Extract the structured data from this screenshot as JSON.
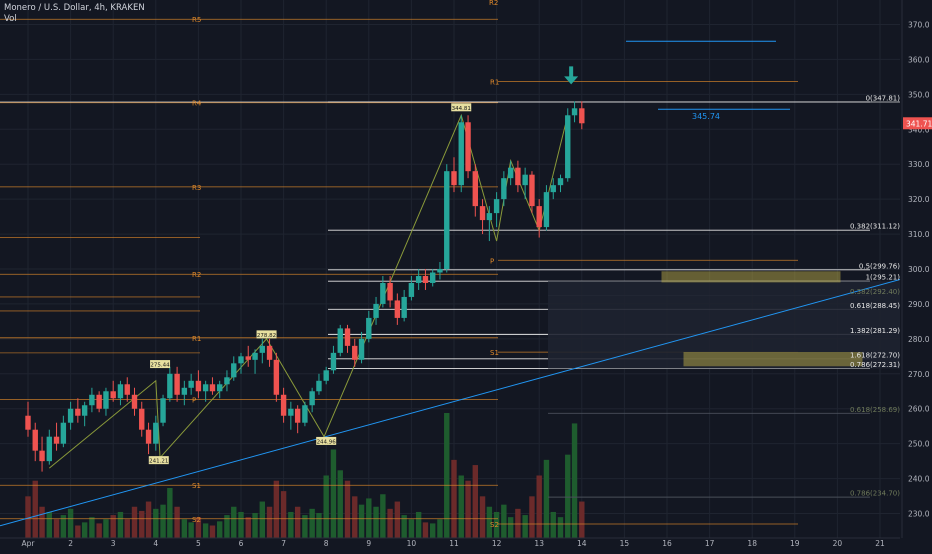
{
  "header": {
    "symbol_line": "Monero / U.S. Dollar, 4h, KRAKEN",
    "volume_label": "Vol"
  },
  "colors": {
    "background": "#131722",
    "up": "#26a69a",
    "down": "#ef5350",
    "vol_up": "#1e5c2e",
    "vol_down": "#6b2a2a",
    "pivot": "#e0892a",
    "fib": "#e6e6e6",
    "trend": "#2196f3",
    "zigzag": "#8a9a3a",
    "zone": "#c9b84a",
    "arrow": "#26a69a",
    "axis_text": "#b2b5be"
  },
  "chart_data": {
    "type": "candlestick",
    "y_axis": {
      "min": 223,
      "max": 377,
      "ticks": [
        230,
        240,
        250,
        260,
        270,
        280,
        290,
        300,
        310,
        320,
        330,
        340,
        350,
        360,
        370
      ]
    },
    "x_axis": {
      "labels": [
        "Apr",
        "2",
        "3",
        "4",
        "5",
        "6",
        "7",
        "8",
        "9",
        "10",
        "11",
        "12",
        "13",
        "14",
        "15",
        "16",
        "17",
        "18",
        "19",
        "20",
        "21"
      ],
      "label_positions": [
        0,
        1,
        2,
        3,
        4,
        5,
        6,
        7,
        8,
        9,
        10,
        11,
        12,
        13,
        14,
        15,
        16,
        17,
        18,
        19,
        20
      ]
    },
    "last_price": {
      "value": 341.71,
      "label": "341.71"
    },
    "level_label": {
      "value": 345.74,
      "label": "345.74"
    },
    "candles": [
      {
        "t": 0.0,
        "o": 258,
        "h": 262,
        "l": 252,
        "c": 254
      },
      {
        "t": 0.17,
        "o": 254,
        "h": 256,
        "l": 245,
        "c": 248
      },
      {
        "t": 0.33,
        "o": 248,
        "h": 252,
        "l": 242,
        "c": 245
      },
      {
        "t": 0.5,
        "o": 245,
        "h": 254,
        "l": 244,
        "c": 252
      },
      {
        "t": 0.67,
        "o": 252,
        "h": 256,
        "l": 248,
        "c": 250
      },
      {
        "t": 0.83,
        "o": 250,
        "h": 258,
        "l": 249,
        "c": 256
      },
      {
        "t": 1.0,
        "o": 256,
        "h": 262,
        "l": 254,
        "c": 260
      },
      {
        "t": 1.17,
        "o": 260,
        "h": 263,
        "l": 256,
        "c": 258
      },
      {
        "t": 1.33,
        "o": 258,
        "h": 262,
        "l": 255,
        "c": 261
      },
      {
        "t": 1.5,
        "o": 261,
        "h": 266,
        "l": 259,
        "c": 264
      },
      {
        "t": 1.67,
        "o": 264,
        "h": 265,
        "l": 259,
        "c": 260
      },
      {
        "t": 1.83,
        "o": 260,
        "h": 266,
        "l": 258,
        "c": 265
      },
      {
        "t": 2.0,
        "o": 265,
        "h": 268,
        "l": 262,
        "c": 263
      },
      {
        "t": 2.17,
        "o": 263,
        "h": 268,
        "l": 261,
        "c": 267
      },
      {
        "t": 2.33,
        "o": 267,
        "h": 269,
        "l": 262,
        "c": 264
      },
      {
        "t": 2.5,
        "o": 264,
        "h": 266,
        "l": 258,
        "c": 260
      },
      {
        "t": 2.67,
        "o": 260,
        "h": 262,
        "l": 252,
        "c": 254
      },
      {
        "t": 2.83,
        "o": 254,
        "h": 256,
        "l": 247,
        "c": 250
      },
      {
        "t": 3.0,
        "o": 250,
        "h": 258,
        "l": 248,
        "c": 256
      },
      {
        "t": 3.17,
        "o": 256,
        "h": 264,
        "l": 255,
        "c": 263
      },
      {
        "t": 3.33,
        "o": 263,
        "h": 272,
        "l": 262,
        "c": 270
      },
      {
        "t": 3.5,
        "o": 270,
        "h": 272,
        "l": 262,
        "c": 264
      },
      {
        "t": 3.67,
        "o": 264,
        "h": 268,
        "l": 261,
        "c": 266
      },
      {
        "t": 3.83,
        "o": 266,
        "h": 270,
        "l": 264,
        "c": 268
      },
      {
        "t": 4.0,
        "o": 268,
        "h": 271,
        "l": 263,
        "c": 265
      },
      {
        "t": 4.17,
        "o": 265,
        "h": 268,
        "l": 262,
        "c": 267
      },
      {
        "t": 4.33,
        "o": 267,
        "h": 269,
        "l": 264,
        "c": 265
      },
      {
        "t": 4.5,
        "o": 265,
        "h": 268,
        "l": 263,
        "c": 267
      },
      {
        "t": 4.67,
        "o": 267,
        "h": 271,
        "l": 265,
        "c": 269
      },
      {
        "t": 4.83,
        "o": 269,
        "h": 275,
        "l": 268,
        "c": 273
      },
      {
        "t": 5.0,
        "o": 273,
        "h": 276,
        "l": 270,
        "c": 275
      },
      {
        "t": 5.17,
        "o": 275,
        "h": 278,
        "l": 272,
        "c": 274
      },
      {
        "t": 5.33,
        "o": 274,
        "h": 277,
        "l": 270,
        "c": 276
      },
      {
        "t": 5.5,
        "o": 276,
        "h": 280,
        "l": 273,
        "c": 278
      },
      {
        "t": 5.67,
        "o": 278,
        "h": 280,
        "l": 272,
        "c": 274
      },
      {
        "t": 5.83,
        "o": 274,
        "h": 276,
        "l": 262,
        "c": 264
      },
      {
        "t": 6.0,
        "o": 264,
        "h": 266,
        "l": 256,
        "c": 258
      },
      {
        "t": 6.17,
        "o": 258,
        "h": 262,
        "l": 254,
        "c": 260
      },
      {
        "t": 6.33,
        "o": 260,
        "h": 261,
        "l": 253,
        "c": 256
      },
      {
        "t": 6.5,
        "o": 256,
        "h": 262,
        "l": 255,
        "c": 261
      },
      {
        "t": 6.67,
        "o": 261,
        "h": 266,
        "l": 259,
        "c": 265
      },
      {
        "t": 6.83,
        "o": 265,
        "h": 270,
        "l": 264,
        "c": 268
      },
      {
        "t": 7.0,
        "o": 268,
        "h": 272,
        "l": 267,
        "c": 271
      },
      {
        "t": 7.17,
        "o": 271,
        "h": 278,
        "l": 270,
        "c": 276
      },
      {
        "t": 7.33,
        "o": 276,
        "h": 284,
        "l": 275,
        "c": 283
      },
      {
        "t": 7.5,
        "o": 283,
        "h": 284,
        "l": 276,
        "c": 278
      },
      {
        "t": 7.67,
        "o": 278,
        "h": 280,
        "l": 272,
        "c": 274
      },
      {
        "t": 7.83,
        "o": 274,
        "h": 282,
        "l": 273,
        "c": 280
      },
      {
        "t": 8.0,
        "o": 280,
        "h": 288,
        "l": 279,
        "c": 286
      },
      {
        "t": 8.17,
        "o": 286,
        "h": 292,
        "l": 284,
        "c": 290
      },
      {
        "t": 8.33,
        "o": 290,
        "h": 298,
        "l": 289,
        "c": 296
      },
      {
        "t": 8.5,
        "o": 296,
        "h": 298,
        "l": 289,
        "c": 291
      },
      {
        "t": 8.67,
        "o": 291,
        "h": 293,
        "l": 284,
        "c": 286
      },
      {
        "t": 8.83,
        "o": 286,
        "h": 294,
        "l": 285,
        "c": 292
      },
      {
        "t": 9.0,
        "o": 292,
        "h": 298,
        "l": 291,
        "c": 296
      },
      {
        "t": 9.17,
        "o": 296,
        "h": 300,
        "l": 294,
        "c": 298
      },
      {
        "t": 9.33,
        "o": 298,
        "h": 300,
        "l": 294,
        "c": 296
      },
      {
        "t": 9.5,
        "o": 296,
        "h": 300,
        "l": 295,
        "c": 299
      },
      {
        "t": 9.67,
        "o": 299,
        "h": 302,
        "l": 297,
        "c": 300
      },
      {
        "t": 9.83,
        "o": 300,
        "h": 330,
        "l": 299,
        "c": 328
      },
      {
        "t": 10.0,
        "o": 328,
        "h": 332,
        "l": 322,
        "c": 324
      },
      {
        "t": 10.17,
        "o": 324,
        "h": 344,
        "l": 322,
        "c": 342
      },
      {
        "t": 10.33,
        "o": 342,
        "h": 344,
        "l": 326,
        "c": 328
      },
      {
        "t": 10.5,
        "o": 328,
        "h": 330,
        "l": 315,
        "c": 318
      },
      {
        "t": 10.67,
        "o": 318,
        "h": 320,
        "l": 310,
        "c": 314
      },
      {
        "t": 10.83,
        "o": 314,
        "h": 318,
        "l": 308,
        "c": 316
      },
      {
        "t": 11.0,
        "o": 316,
        "h": 322,
        "l": 312,
        "c": 320
      },
      {
        "t": 11.17,
        "o": 320,
        "h": 328,
        "l": 318,
        "c": 326
      },
      {
        "t": 11.33,
        "o": 326,
        "h": 331,
        "l": 324,
        "c": 329
      },
      {
        "t": 11.5,
        "o": 329,
        "h": 331,
        "l": 322,
        "c": 324
      },
      {
        "t": 11.67,
        "o": 324,
        "h": 329,
        "l": 320,
        "c": 327
      },
      {
        "t": 11.83,
        "o": 327,
        "h": 328,
        "l": 316,
        "c": 318
      },
      {
        "t": 12.0,
        "o": 318,
        "h": 320,
        "l": 309,
        "c": 312
      },
      {
        "t": 12.17,
        "o": 312,
        "h": 324,
        "l": 311,
        "c": 322
      },
      {
        "t": 12.33,
        "o": 322,
        "h": 326,
        "l": 320,
        "c": 324
      },
      {
        "t": 12.5,
        "o": 324,
        "h": 327,
        "l": 322,
        "c": 326
      },
      {
        "t": 12.67,
        "o": 326,
        "h": 346,
        "l": 325,
        "c": 344
      },
      {
        "t": 12.83,
        "o": 344,
        "h": 348,
        "l": 342,
        "c": 346
      },
      {
        "t": 13.0,
        "o": 346,
        "h": 348,
        "l": 340,
        "c": 341.71
      }
    ],
    "volumes": [
      {
        "t": 0.0,
        "v": 40,
        "up": false
      },
      {
        "t": 0.17,
        "v": 55,
        "up": false
      },
      {
        "t": 0.33,
        "v": 30,
        "up": false
      },
      {
        "t": 0.5,
        "v": 25,
        "up": true
      },
      {
        "t": 0.67,
        "v": 18,
        "up": false
      },
      {
        "t": 0.83,
        "v": 22,
        "up": true
      },
      {
        "t": 1.0,
        "v": 28,
        "up": true
      },
      {
        "t": 1.17,
        "v": 12,
        "up": false
      },
      {
        "t": 1.33,
        "v": 15,
        "up": true
      },
      {
        "t": 1.5,
        "v": 20,
        "up": true
      },
      {
        "t": 1.67,
        "v": 14,
        "up": false
      },
      {
        "t": 1.83,
        "v": 18,
        "up": true
      },
      {
        "t": 2.0,
        "v": 22,
        "up": false
      },
      {
        "t": 2.17,
        "v": 25,
        "up": true
      },
      {
        "t": 2.33,
        "v": 18,
        "up": false
      },
      {
        "t": 2.5,
        "v": 30,
        "up": false
      },
      {
        "t": 2.67,
        "v": 26,
        "up": false
      },
      {
        "t": 2.83,
        "v": 35,
        "up": false
      },
      {
        "t": 3.0,
        "v": 28,
        "up": true
      },
      {
        "t": 3.17,
        "v": 32,
        "up": true
      },
      {
        "t": 3.33,
        "v": 48,
        "up": true
      },
      {
        "t": 3.5,
        "v": 30,
        "up": false
      },
      {
        "t": 3.67,
        "v": 18,
        "up": true
      },
      {
        "t": 3.83,
        "v": 15,
        "up": true
      },
      {
        "t": 4.0,
        "v": 20,
        "up": false
      },
      {
        "t": 4.17,
        "v": 14,
        "up": true
      },
      {
        "t": 4.33,
        "v": 12,
        "up": false
      },
      {
        "t": 4.5,
        "v": 16,
        "up": true
      },
      {
        "t": 4.67,
        "v": 22,
        "up": true
      },
      {
        "t": 4.83,
        "v": 30,
        "up": true
      },
      {
        "t": 5.0,
        "v": 25,
        "up": true
      },
      {
        "t": 5.17,
        "v": 20,
        "up": false
      },
      {
        "t": 5.33,
        "v": 24,
        "up": true
      },
      {
        "t": 5.5,
        "v": 35,
        "up": true
      },
      {
        "t": 5.67,
        "v": 30,
        "up": false
      },
      {
        "t": 5.83,
        "v": 55,
        "up": false
      },
      {
        "t": 6.0,
        "v": 45,
        "up": false
      },
      {
        "t": 6.17,
        "v": 25,
        "up": true
      },
      {
        "t": 6.33,
        "v": 30,
        "up": false
      },
      {
        "t": 6.5,
        "v": 22,
        "up": true
      },
      {
        "t": 6.67,
        "v": 28,
        "up": true
      },
      {
        "t": 6.83,
        "v": 24,
        "up": true
      },
      {
        "t": 7.0,
        "v": 60,
        "up": true
      },
      {
        "t": 7.17,
        "v": 85,
        "up": true
      },
      {
        "t": 7.33,
        "v": 65,
        "up": true
      },
      {
        "t": 7.5,
        "v": 55,
        "up": false
      },
      {
        "t": 7.67,
        "v": 40,
        "up": false
      },
      {
        "t": 7.83,
        "v": 32,
        "up": true
      },
      {
        "t": 8.0,
        "v": 38,
        "up": true
      },
      {
        "t": 8.17,
        "v": 30,
        "up": true
      },
      {
        "t": 8.33,
        "v": 42,
        "up": true
      },
      {
        "t": 8.5,
        "v": 28,
        "up": false
      },
      {
        "t": 8.67,
        "v": 35,
        "up": false
      },
      {
        "t": 8.83,
        "v": 22,
        "up": true
      },
      {
        "t": 9.0,
        "v": 18,
        "up": true
      },
      {
        "t": 9.17,
        "v": 25,
        "up": true
      },
      {
        "t": 9.33,
        "v": 15,
        "up": false
      },
      {
        "t": 9.5,
        "v": 14,
        "up": true
      },
      {
        "t": 9.67,
        "v": 18,
        "up": true
      },
      {
        "t": 9.83,
        "v": 120,
        "up": true
      },
      {
        "t": 10.0,
        "v": 75,
        "up": false
      },
      {
        "t": 10.17,
        "v": 60,
        "up": true
      },
      {
        "t": 10.33,
        "v": 55,
        "up": false
      },
      {
        "t": 10.5,
        "v": 70,
        "up": false
      },
      {
        "t": 10.67,
        "v": 40,
        "up": false
      },
      {
        "t": 10.83,
        "v": 30,
        "up": true
      },
      {
        "t": 11.0,
        "v": 25,
        "up": true
      },
      {
        "t": 11.17,
        "v": 32,
        "up": true
      },
      {
        "t": 11.33,
        "v": 20,
        "up": true
      },
      {
        "t": 11.5,
        "v": 28,
        "up": false
      },
      {
        "t": 11.67,
        "v": 22,
        "up": true
      },
      {
        "t": 11.83,
        "v": 40,
        "up": false
      },
      {
        "t": 12.0,
        "v": 60,
        "up": false
      },
      {
        "t": 12.17,
        "v": 75,
        "up": true
      },
      {
        "t": 12.33,
        "v": 25,
        "up": true
      },
      {
        "t": 12.5,
        "v": 20,
        "up": true
      },
      {
        "t": 12.67,
        "v": 80,
        "up": true
      },
      {
        "t": 12.83,
        "v": 110,
        "up": true
      },
      {
        "t": 13.0,
        "v": 35,
        "up": false
      }
    ],
    "pivots": [
      {
        "label": "R5",
        "value": 371.5
      },
      {
        "label": "R4",
        "value": 347.6
      },
      {
        "label": "R3",
        "value": 323.5
      },
      {
        "label": "R2",
        "value": 298.5
      },
      {
        "label": "R1",
        "value": 280.3
      },
      {
        "label": "P",
        "value": 262.6
      },
      {
        "label": "S1",
        "value": 238.1
      },
      {
        "label": "S2",
        "value": 228.5
      }
    ],
    "pivots_right": [
      {
        "label": "R2",
        "value": 380
      },
      {
        "label": "R1",
        "value": 353.7
      },
      {
        "label": "P",
        "value": 302.5
      },
      {
        "label": "S1",
        "value": 276.2
      },
      {
        "label": "S2",
        "value": 227
      }
    ],
    "fib_levels": [
      {
        "label": "0(347.81)",
        "value": 347.81
      },
      {
        "label": "0.382(311.12)",
        "value": 311.12
      },
      {
        "label": "0.5(299.76)",
        "value": 299.76
      },
      {
        "label": "1(295.21)",
        "value": 296.5
      },
      {
        "label": "0.382(292.40)",
        "value": 292.4,
        "dim": true
      },
      {
        "label": "0.618(288.45)",
        "value": 288.45
      },
      {
        "label": "1.382(281.29)",
        "value": 281.29
      },
      {
        "label": "1.618(272.70)",
        "value": 274.3
      },
      {
        "label": "0.786(272.31)",
        "value": 271.5
      },
      {
        "label": "0.618(258.69)",
        "value": 258.69,
        "dim": true
      },
      {
        "label": "0.786(234.70)",
        "value": 234.7,
        "dim": true
      }
    ],
    "zigzag_labels": [
      {
        "label": "275.44",
        "t": 3.1,
        "value": 272.5
      },
      {
        "label": "241.21",
        "t": 3.07,
        "value": 245
      },
      {
        "label": "278.82",
        "t": 5.6,
        "value": 281
      },
      {
        "label": "244.96",
        "t": 7.0,
        "value": 250.5
      },
      {
        "label": "344.81",
        "t": 10.17,
        "value": 346
      }
    ]
  }
}
